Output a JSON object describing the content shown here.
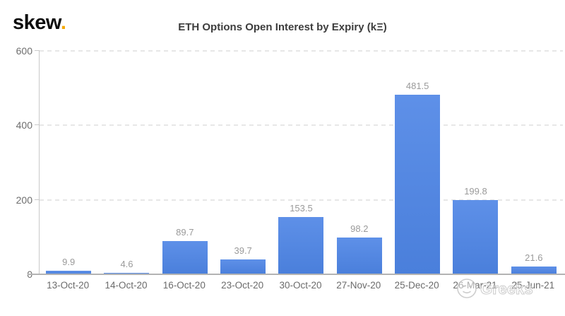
{
  "header": {
    "logo_text": "skew",
    "logo_dot": ".",
    "title": "ETH Options Open Interest by Expiry (kΞ)"
  },
  "watermark": {
    "icon": "smiley-face-icon",
    "text": "Greeks"
  },
  "colors": {
    "bar_blue": "#4f83e1",
    "logo_dot_orange": "#f5a800",
    "axis_label_gray": "#6b6b6b",
    "value_label_gray": "#9a9a9a",
    "gridline_gray": "#e7e7e7",
    "watermark_gray": "#c6c6c6"
  },
  "chart_data": {
    "type": "bar",
    "title": "ETH Options Open Interest by Expiry (kΞ)",
    "categories": [
      "13-Oct-20",
      "14-Oct-20",
      "16-Oct-20",
      "23-Oct-20",
      "30-Oct-20",
      "27-Nov-20",
      "25-Dec-20",
      "26-Mar-21",
      "25-Jun-21"
    ],
    "values": [
      9.9,
      4.6,
      89.7,
      39.7,
      153.5,
      98.2,
      481.5,
      199.8,
      21.6
    ],
    "xlabel": "",
    "ylabel": "",
    "ylim": [
      0,
      600
    ],
    "yticks": [
      0,
      200,
      400,
      600
    ],
    "grid": "horizontal-dashed",
    "legend": "none",
    "value_labels": true
  }
}
